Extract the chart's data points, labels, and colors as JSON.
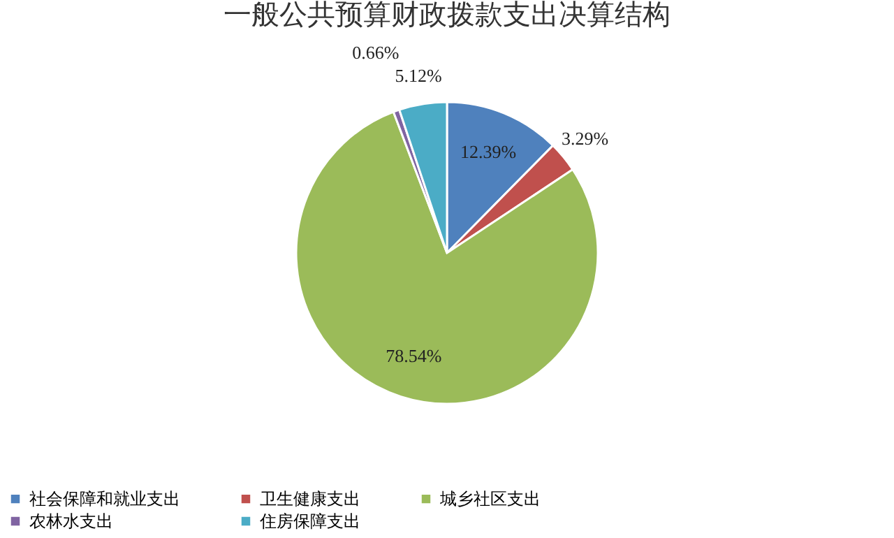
{
  "chart_data": {
    "type": "pie",
    "title": "一般公共预算财政拨款支出决算结构",
    "categories": [
      "社会保障和就业支出",
      "卫生健康支出",
      "城乡社区支出",
      "农林水支出",
      "住房保障支出"
    ],
    "values": [
      12.39,
      3.29,
      78.54,
      0.66,
      5.12
    ],
    "colors": [
      "#4f81bd",
      "#c0504d",
      "#9bbb59",
      "#8064a2",
      "#4bacc6"
    ],
    "value_labels": [
      "12.39%",
      "3.29%",
      "78.54%",
      "0.66%",
      "5.12%"
    ],
    "legend": "bottom"
  }
}
